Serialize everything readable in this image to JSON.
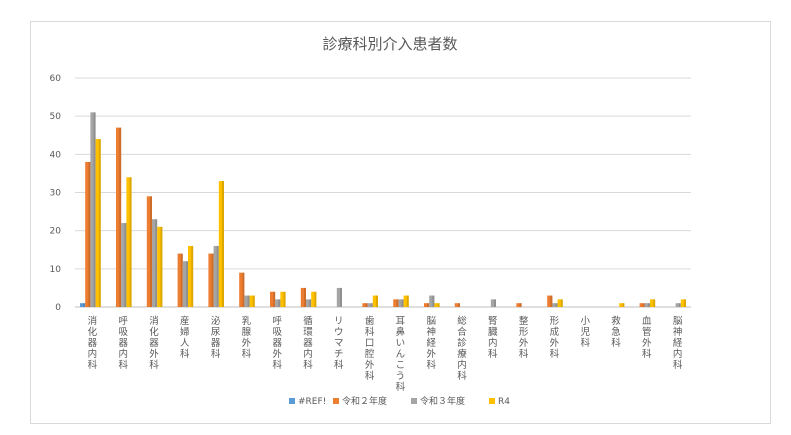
{
  "chart_data": {
    "type": "bar",
    "title": "診療科別介入患者数",
    "xlabel": "",
    "ylabel": "",
    "ylim": [
      0,
      60
    ],
    "yticks": [
      0,
      10,
      20,
      30,
      40,
      50,
      60
    ],
    "grid": true,
    "legend": "bottom",
    "categories": [
      "消化器内科",
      "呼吸器内科",
      "消化器外科",
      "産婦人科",
      "泌尿器科",
      "乳腺外科",
      "呼吸器外科",
      "循環器内科",
      "リウマチ科",
      "歯科口腔外科",
      "耳鼻いんこう科",
      "脳神経外科",
      "総合診療内科",
      "腎臓内科",
      "整形外科",
      "形成外科",
      "小児科",
      "救急科",
      "血管外科",
      "脳神経内科"
    ],
    "series": [
      {
        "name": "#REF!",
        "color": "#5b9bd5",
        "values": [
          1,
          0,
          0,
          0,
          0,
          0,
          0,
          0,
          0,
          0,
          0,
          0,
          0,
          0,
          0,
          0,
          0,
          0,
          0,
          0
        ]
      },
      {
        "name": "令和２年度",
        "color": "#ed7d31",
        "values": [
          38,
          47,
          29,
          14,
          14,
          9,
          4,
          5,
          0,
          1,
          2,
          1,
          1,
          0,
          1,
          3,
          0,
          0,
          1,
          0
        ]
      },
      {
        "name": "令和３年度",
        "color": "#a5a5a5",
        "values": [
          51,
          22,
          23,
          12,
          16,
          3,
          2,
          2,
          5,
          1,
          2,
          3,
          0,
          2,
          0,
          1,
          0,
          0,
          1,
          1
        ]
      },
      {
        "name": "R4",
        "color": "#ffc000",
        "values": [
          44,
          34,
          21,
          16,
          33,
          3,
          4,
          4,
          0,
          3,
          3,
          1,
          0,
          0,
          0,
          2,
          0,
          1,
          2,
          2
        ]
      }
    ]
  }
}
